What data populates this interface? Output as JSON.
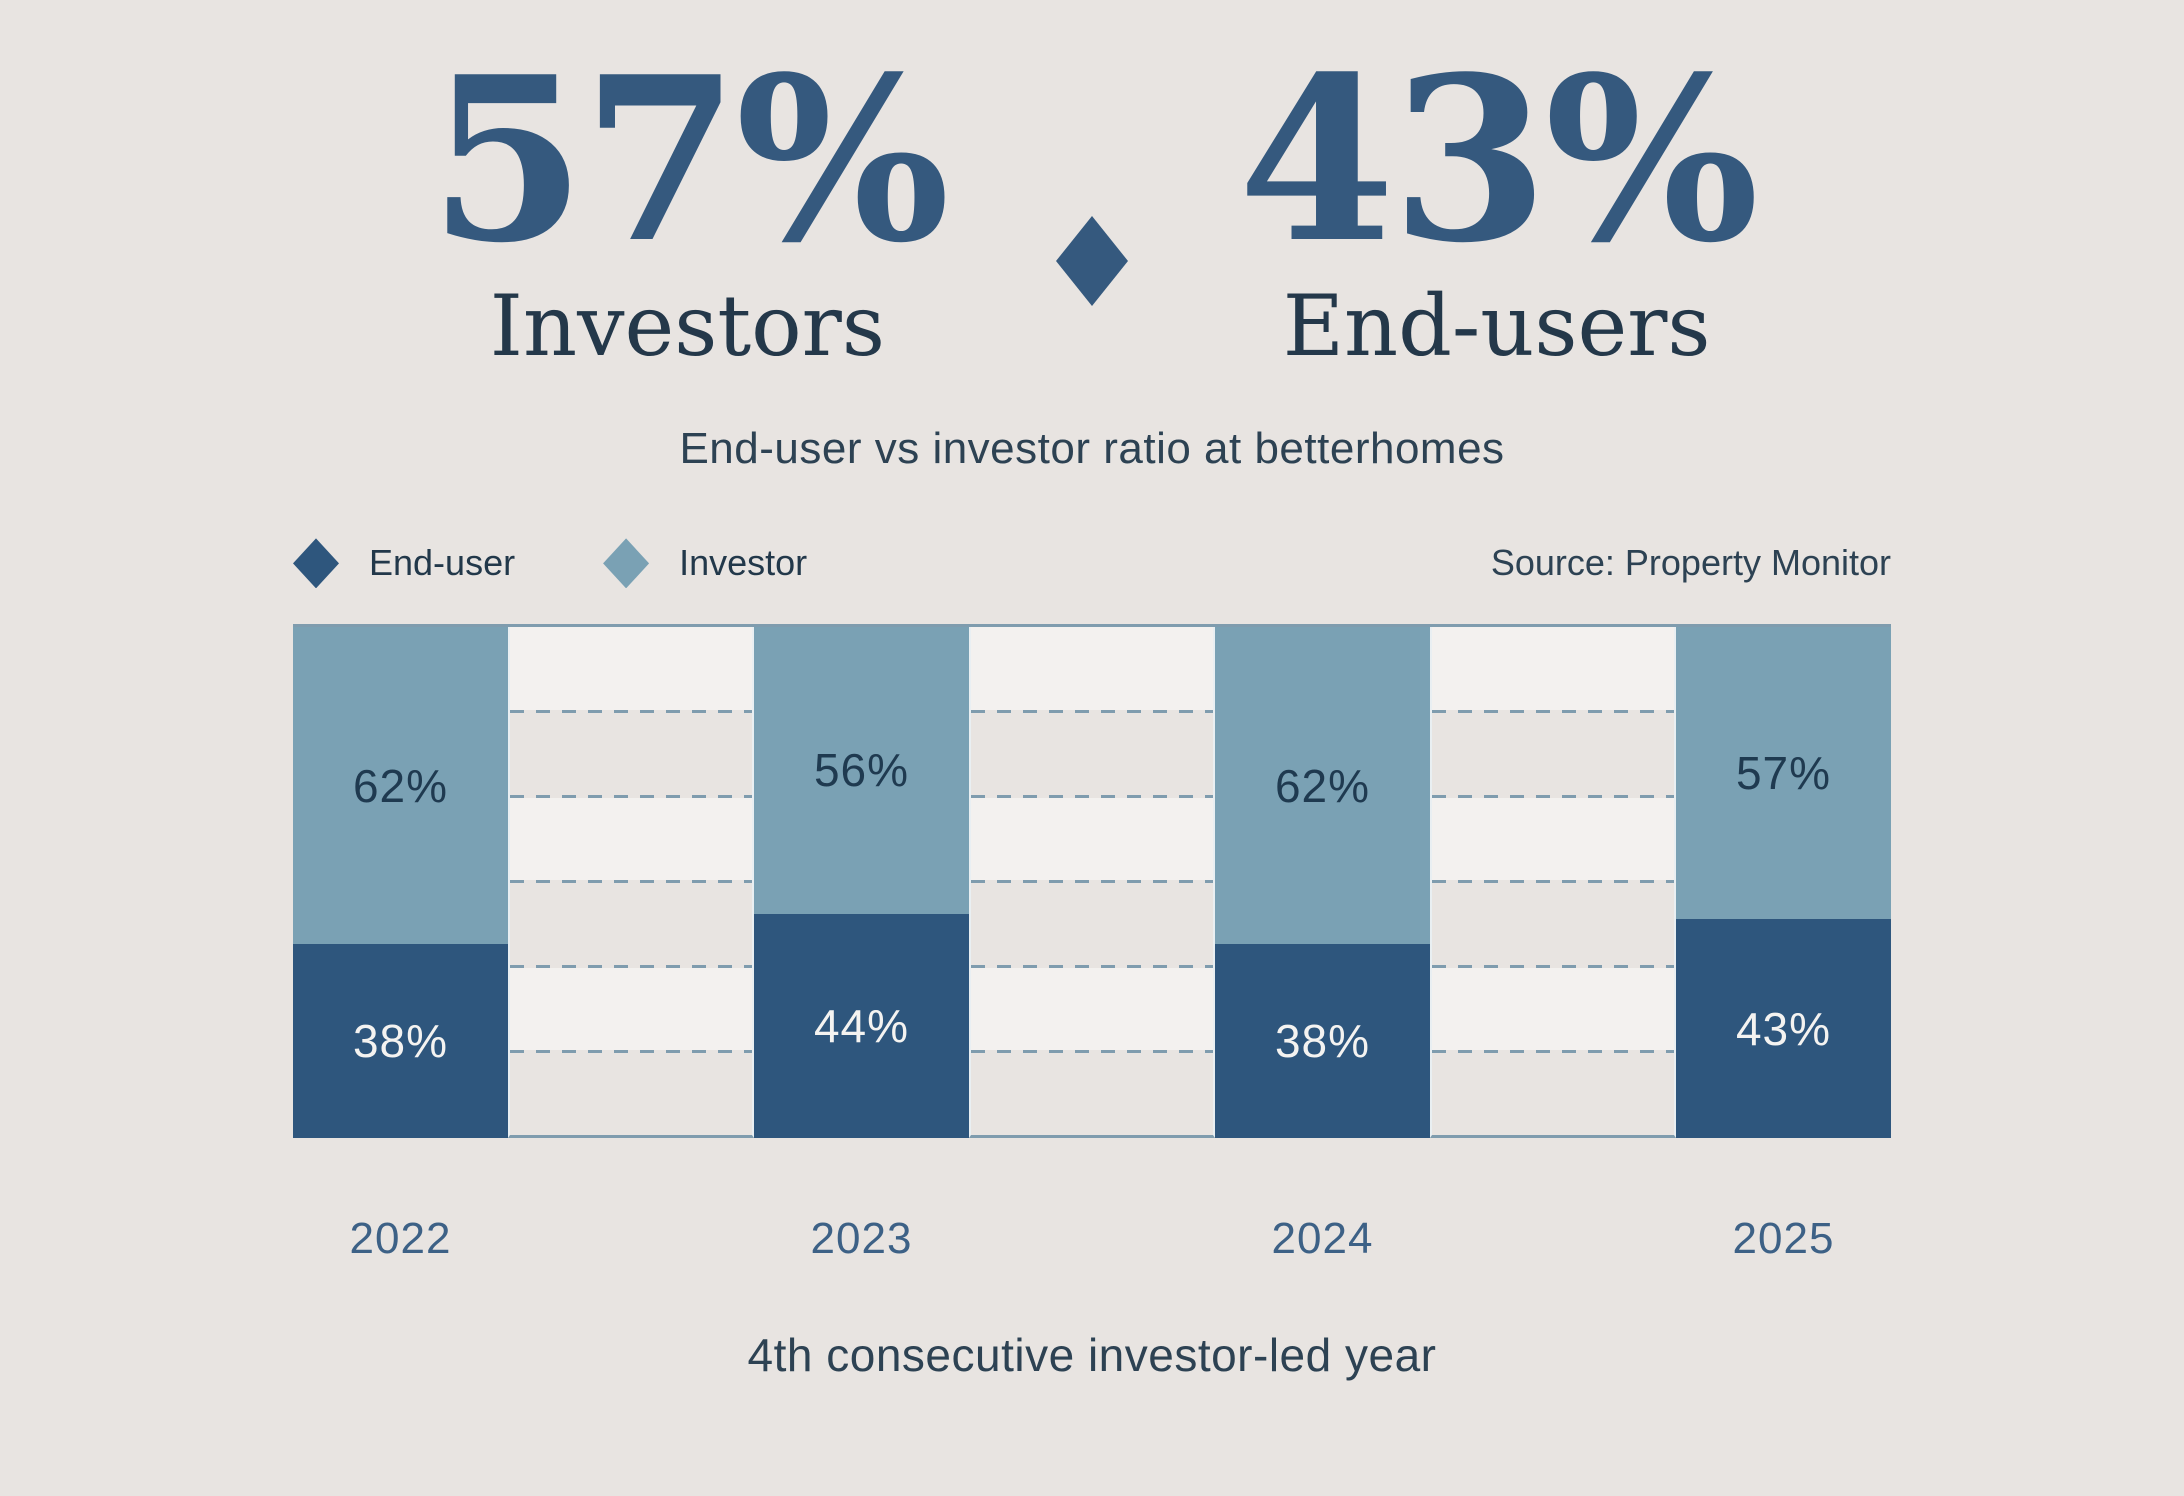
{
  "stats": {
    "investors": {
      "value": "57%",
      "label": "Investors"
    },
    "end_users": {
      "value": "43%",
      "label": "End-users"
    }
  },
  "subtitle": "End-user vs investor ratio at betterhomes",
  "legend": [
    {
      "label": "End-user",
      "color": "#2e567d"
    },
    {
      "label": "Investor",
      "color": "#7aa1b4"
    }
  ],
  "source": "Source: Property Monitor",
  "caption": "4th consecutive investor-led year",
  "chart_data": {
    "type": "bar",
    "stacked": true,
    "unit": "percent",
    "categories": [
      "2022",
      "2023",
      "2024",
      "2025"
    ],
    "series": [
      {
        "name": "Investor",
        "color": "#7aa1b4",
        "values": [
          62,
          56,
          62,
          57
        ]
      },
      {
        "name": "End-user",
        "color": "#2e567d",
        "values": [
          38,
          44,
          38,
          43
        ]
      }
    ],
    "labels": {
      "investor": [
        "62%",
        "56%",
        "62%",
        "57%"
      ],
      "end_user": [
        "38%",
        "44%",
        "38%",
        "43%"
      ]
    },
    "ylim": [
      0,
      100
    ],
    "grid": "horizontal dashed lines in spacer columns, 6 equal bands",
    "legend_position": "top-left",
    "bar_orientation": "vertical"
  },
  "colors": {
    "background": "#e8e4e1",
    "investor": "#7aa1b4",
    "end_user": "#2e567d",
    "accent_text": "#35597e",
    "heading_text": "#24384a",
    "body_text": "#2d4253",
    "year_label": "#3d6186",
    "dashed_line": "#7f9cae",
    "grid_band_light": "#f3f1ef",
    "grid_band_dark": "#e8e4e1",
    "label_on_light": "#1f3a50",
    "label_on_dark": "#f4f3f1"
  }
}
